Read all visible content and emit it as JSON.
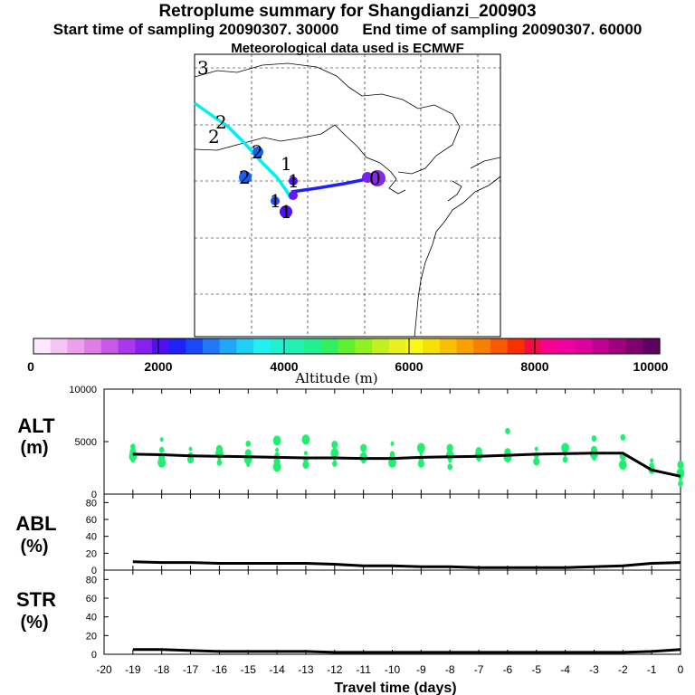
{
  "header": {
    "title": "Retroplume summary for Shangdianzi_200903",
    "start_label": "Start time of sampling 20090307. 30000",
    "end_label": "End time of sampling 20090307. 60000",
    "met_label": "Meteorological data used is ECMWF"
  },
  "colors": {
    "scale": [
      "#fce8fc",
      "#f4c4f4",
      "#eca0ec",
      "#e07ce6",
      "#c858e8",
      "#a838ec",
      "#8820f0",
      "#5010f0",
      "#2020f8",
      "#1848f8",
      "#2078f8",
      "#20a8f8",
      "#20d0f4",
      "#20f0f0",
      "#20f0d0",
      "#20f0b0",
      "#20f090",
      "#30f060",
      "#60f030",
      "#90f020",
      "#c0f020",
      "#e8f020",
      "#f8f810",
      "#f8e000",
      "#f8c000",
      "#f8a000",
      "#f88000",
      "#f85800",
      "#f83000",
      "#f01040",
      "#f80090",
      "#f000a0",
      "#e000a0",
      "#c00090",
      "#a00080",
      "#800070",
      "#600060"
    ],
    "trajectory_cyan": "#00f0f0",
    "trajectory_blue": "#2020f8",
    "alt_points": "#20f070",
    "line": "#000000"
  },
  "map": {
    "cluster_labels": [
      "3",
      "2",
      "2",
      "2",
      "2",
      "1",
      "1",
      "1",
      "1",
      "0"
    ]
  },
  "colorbar": {
    "tick_labels": [
      "0",
      "2000",
      "4000",
      "6000",
      "8000",
      "10000"
    ],
    "axis_label": "Altitude (m)"
  },
  "panels": {
    "alt_label": "ALT",
    "alt_unit": "(m)",
    "abl_label": "ABL",
    "abl_unit": "(%)",
    "str_label": "STR",
    "str_unit": "(%)",
    "xlabel": "Travel time (days)"
  },
  "chart_data": [
    {
      "type": "line",
      "title": "ALT (m)",
      "xlim": [
        -20,
        0
      ],
      "ylim": [
        0,
        10000
      ],
      "yticks": [
        "0",
        "5000",
        "10000"
      ],
      "x": [
        -19,
        -18,
        -17,
        -16,
        -15,
        -14,
        -13,
        -12,
        -11,
        -10,
        -9,
        -8,
        -7,
        -6,
        -5,
        -4,
        -3,
        -2,
        -1,
        0
      ],
      "values": [
        3800,
        3750,
        3650,
        3600,
        3550,
        3500,
        3450,
        3450,
        3400,
        3400,
        3500,
        3550,
        3600,
        3700,
        3800,
        3850,
        3900,
        3900,
        2300,
        1700
      ],
      "points": [
        {
          "x": -19,
          "ys": [
            3200,
            3600,
            4000,
            4500
          ]
        },
        {
          "x": -18,
          "ys": [
            3000,
            3500,
            4200,
            5200
          ]
        },
        {
          "x": -17,
          "ys": [
            3300,
            3700,
            4300
          ]
        },
        {
          "x": -16,
          "ys": [
            3000,
            3400,
            3900,
            4300
          ]
        },
        {
          "x": -15,
          "ys": [
            2800,
            3300,
            3900,
            4800
          ]
        },
        {
          "x": -14,
          "ys": [
            2600,
            3100,
            3700,
            4200,
            5100
          ]
        },
        {
          "x": -13,
          "ys": [
            2800,
            3300,
            3900,
            5200
          ]
        },
        {
          "x": -12,
          "ys": [
            2900,
            3400,
            3900,
            4700
          ]
        },
        {
          "x": -11,
          "ys": [
            3100,
            3500,
            4400
          ]
        },
        {
          "x": -10,
          "ys": [
            3000,
            3400,
            3800,
            4800
          ]
        },
        {
          "x": -9,
          "ys": [
            2900,
            3400,
            3900,
            4400
          ]
        },
        {
          "x": -8,
          "ys": [
            2600,
            3200,
            3700,
            4400
          ]
        },
        {
          "x": -7,
          "ys": [
            3300,
            3700,
            4100
          ]
        },
        {
          "x": -6,
          "ys": [
            3500,
            4000,
            6000
          ]
        },
        {
          "x": -5,
          "ys": [
            3100,
            3700,
            4300
          ]
        },
        {
          "x": -4,
          "ys": [
            3300,
            3800,
            4400
          ]
        },
        {
          "x": -3,
          "ys": [
            3400,
            3800,
            4200,
            5300
          ]
        },
        {
          "x": -2,
          "ys": [
            2800,
            3600,
            5400
          ]
        },
        {
          "x": -1,
          "ys": [
            2300,
            2700,
            3200
          ]
        },
        {
          "x": 0,
          "ys": [
            1000,
            1500,
            2000,
            2800
          ]
        }
      ]
    },
    {
      "type": "line",
      "title": "ABL (%)",
      "xlim": [
        -20,
        0
      ],
      "ylim": [
        0,
        90
      ],
      "yticks": [
        "0",
        "20",
        "40",
        "60",
        "80"
      ],
      "x": [
        -19,
        -18,
        -17,
        -16,
        -15,
        -14,
        -13,
        -12,
        -11,
        -10,
        -9,
        -8,
        -7,
        -6,
        -5,
        -4,
        -3,
        -2,
        -1,
        0
      ],
      "values": [
        10,
        9,
        9,
        8,
        8,
        8,
        8,
        7,
        5,
        5,
        4,
        4,
        3,
        3,
        3,
        3,
        4,
        5,
        8,
        9
      ]
    },
    {
      "type": "line",
      "title": "STR (%)",
      "xlim": [
        -20,
        0
      ],
      "ylim": [
        0,
        90
      ],
      "yticks": [
        "0",
        "20",
        "40",
        "60",
        "80"
      ],
      "x": [
        -19,
        -18,
        -17,
        -16,
        -15,
        -14,
        -13,
        -12,
        -11,
        -10,
        -9,
        -8,
        -7,
        -6,
        -5,
        -4,
        -3,
        -2,
        -1,
        0
      ],
      "values": [
        5,
        5,
        4,
        3,
        3,
        3,
        3,
        2,
        2,
        2,
        2,
        2,
        2,
        2,
        2,
        2,
        2,
        2,
        3,
        5
      ],
      "xticks": [
        "-20",
        "-19",
        "-18",
        "-17",
        "-16",
        "-15",
        "-14",
        "-13",
        "-12",
        "-11",
        "-10",
        "-9",
        "-8",
        "-7",
        "-6",
        "-5",
        "-4",
        "-3",
        "-2",
        "-1",
        "0"
      ]
    }
  ]
}
